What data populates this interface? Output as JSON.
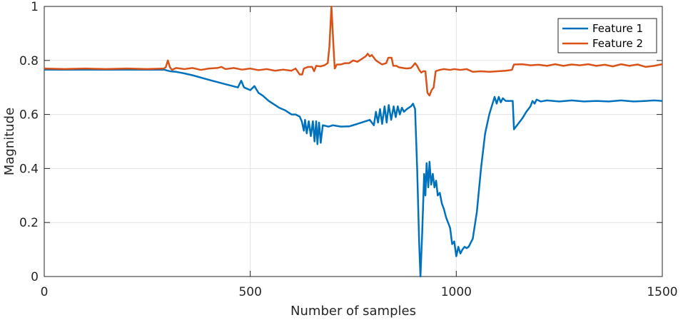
{
  "chart_data": {
    "type": "line",
    "title": "",
    "xlabel": "Number of samples",
    "ylabel": "Magnitude",
    "xlim": [
      0,
      1500
    ],
    "ylim": [
      0,
      1
    ],
    "xticks": [
      0,
      500,
      1000,
      1500
    ],
    "yticks": [
      0,
      0.2,
      0.4,
      0.6,
      0.8,
      1
    ],
    "xtick_labels": [
      "0",
      "500",
      "1000",
      "1500"
    ],
    "ytick_labels": [
      "0",
      "0.2",
      "0.4",
      "0.6",
      "0.8",
      "1"
    ],
    "grid": true,
    "legend_position": "top-right",
    "series": [
      {
        "name": "Feature 1",
        "color": "#0072BD",
        "points": [
          [
            0,
            0.766
          ],
          [
            100,
            0.766
          ],
          [
            200,
            0.766
          ],
          [
            290,
            0.766
          ],
          [
            305,
            0.76
          ],
          [
            320,
            0.758
          ],
          [
            340,
            0.752
          ],
          [
            360,
            0.745
          ],
          [
            400,
            0.728
          ],
          [
            440,
            0.712
          ],
          [
            470,
            0.7
          ],
          [
            478,
            0.725
          ],
          [
            485,
            0.7
          ],
          [
            500,
            0.69
          ],
          [
            510,
            0.705
          ],
          [
            520,
            0.68
          ],
          [
            530,
            0.67
          ],
          [
            545,
            0.65
          ],
          [
            555,
            0.64
          ],
          [
            570,
            0.625
          ],
          [
            585,
            0.615
          ],
          [
            600,
            0.6
          ],
          [
            610,
            0.6
          ],
          [
            620,
            0.592
          ],
          [
            625,
            0.575
          ],
          [
            630,
            0.54
          ],
          [
            633,
            0.58
          ],
          [
            637,
            0.53
          ],
          [
            642,
            0.575
          ],
          [
            647,
            0.52
          ],
          [
            652,
            0.575
          ],
          [
            656,
            0.5
          ],
          [
            660,
            0.575
          ],
          [
            663,
            0.49
          ],
          [
            667,
            0.57
          ],
          [
            671,
            0.495
          ],
          [
            676,
            0.56
          ],
          [
            690,
            0.555
          ],
          [
            700,
            0.56
          ],
          [
            720,
            0.555
          ],
          [
            740,
            0.556
          ],
          [
            760,
            0.565
          ],
          [
            770,
            0.57
          ],
          [
            780,
            0.575
          ],
          [
            790,
            0.58
          ],
          [
            800,
            0.56
          ],
          [
            805,
            0.61
          ],
          [
            810,
            0.57
          ],
          [
            815,
            0.62
          ],
          [
            820,
            0.565
          ],
          [
            826,
            0.63
          ],
          [
            831,
            0.57
          ],
          [
            836,
            0.635
          ],
          [
            842,
            0.58
          ],
          [
            848,
            0.63
          ],
          [
            853,
            0.59
          ],
          [
            858,
            0.63
          ],
          [
            863,
            0.6
          ],
          [
            868,
            0.625
          ],
          [
            873,
            0.61
          ],
          [
            880,
            0.62
          ],
          [
            890,
            0.63
          ],
          [
            895,
            0.64
          ],
          [
            900,
            0.62
          ],
          [
            905,
            0.4
          ],
          [
            910,
            0.12
          ],
          [
            913,
            0.0
          ],
          [
            917,
            0.15
          ],
          [
            922,
            0.38
          ],
          [
            925,
            0.3
          ],
          [
            928,
            0.42
          ],
          [
            932,
            0.33
          ],
          [
            935,
            0.425
          ],
          [
            939,
            0.34
          ],
          [
            943,
            0.38
          ],
          [
            947,
            0.33
          ],
          [
            951,
            0.355
          ],
          [
            955,
            0.3
          ],
          [
            960,
            0.31
          ],
          [
            965,
            0.27
          ],
          [
            970,
            0.25
          ],
          [
            975,
            0.22
          ],
          [
            980,
            0.2
          ],
          [
            985,
            0.18
          ],
          [
            990,
            0.12
          ],
          [
            995,
            0.13
          ],
          [
            1000,
            0.075
          ],
          [
            1005,
            0.11
          ],
          [
            1010,
            0.085
          ],
          [
            1015,
            0.1
          ],
          [
            1020,
            0.11
          ],
          [
            1025,
            0.105
          ],
          [
            1030,
            0.11
          ],
          [
            1040,
            0.14
          ],
          [
            1050,
            0.24
          ],
          [
            1060,
            0.4
          ],
          [
            1070,
            0.53
          ],
          [
            1080,
            0.6
          ],
          [
            1088,
            0.64
          ],
          [
            1093,
            0.665
          ],
          [
            1098,
            0.64
          ],
          [
            1103,
            0.665
          ],
          [
            1108,
            0.645
          ],
          [
            1113,
            0.66
          ],
          [
            1120,
            0.65
          ],
          [
            1130,
            0.65
          ],
          [
            1137,
            0.65
          ],
          [
            1140,
            0.545
          ],
          [
            1150,
            0.565
          ],
          [
            1160,
            0.585
          ],
          [
            1170,
            0.61
          ],
          [
            1180,
            0.63
          ],
          [
            1185,
            0.65
          ],
          [
            1190,
            0.64
          ],
          [
            1195,
            0.655
          ],
          [
            1205,
            0.648
          ],
          [
            1220,
            0.652
          ],
          [
            1250,
            0.648
          ],
          [
            1280,
            0.652
          ],
          [
            1310,
            0.648
          ],
          [
            1340,
            0.65
          ],
          [
            1370,
            0.648
          ],
          [
            1400,
            0.652
          ],
          [
            1430,
            0.648
          ],
          [
            1460,
            0.65
          ],
          [
            1480,
            0.652
          ],
          [
            1500,
            0.65
          ]
        ]
      },
      {
        "name": "Feature 2",
        "color": "#D95319",
        "points": [
          [
            0,
            0.77
          ],
          [
            50,
            0.768
          ],
          [
            100,
            0.77
          ],
          [
            150,
            0.768
          ],
          [
            200,
            0.77
          ],
          [
            250,
            0.768
          ],
          [
            290,
            0.77
          ],
          [
            295,
            0.775
          ],
          [
            300,
            0.8
          ],
          [
            305,
            0.775
          ],
          [
            310,
            0.765
          ],
          [
            320,
            0.772
          ],
          [
            340,
            0.768
          ],
          [
            360,
            0.772
          ],
          [
            380,
            0.765
          ],
          [
            400,
            0.77
          ],
          [
            420,
            0.772
          ],
          [
            430,
            0.776
          ],
          [
            440,
            0.768
          ],
          [
            460,
            0.772
          ],
          [
            480,
            0.766
          ],
          [
            500,
            0.77
          ],
          [
            520,
            0.764
          ],
          [
            540,
            0.768
          ],
          [
            560,
            0.762
          ],
          [
            580,
            0.766
          ],
          [
            600,
            0.762
          ],
          [
            610,
            0.77
          ],
          [
            620,
            0.748
          ],
          [
            626,
            0.748
          ],
          [
            630,
            0.77
          ],
          [
            640,
            0.776
          ],
          [
            650,
            0.776
          ],
          [
            655,
            0.76
          ],
          [
            660,
            0.78
          ],
          [
            670,
            0.778
          ],
          [
            680,
            0.782
          ],
          [
            688,
            0.79
          ],
          [
            692,
            0.85
          ],
          [
            697,
            1.0
          ],
          [
            702,
            0.85
          ],
          [
            705,
            0.77
          ],
          [
            710,
            0.785
          ],
          [
            720,
            0.785
          ],
          [
            730,
            0.79
          ],
          [
            740,
            0.79
          ],
          [
            750,
            0.8
          ],
          [
            760,
            0.795
          ],
          [
            770,
            0.805
          ],
          [
            775,
            0.81
          ],
          [
            780,
            0.815
          ],
          [
            785,
            0.825
          ],
          [
            790,
            0.815
          ],
          [
            795,
            0.82
          ],
          [
            800,
            0.81
          ],
          [
            805,
            0.8
          ],
          [
            810,
            0.795
          ],
          [
            820,
            0.785
          ],
          [
            830,
            0.79
          ],
          [
            835,
            0.81
          ],
          [
            843,
            0.81
          ],
          [
            847,
            0.78
          ],
          [
            855,
            0.78
          ],
          [
            860,
            0.775
          ],
          [
            870,
            0.772
          ],
          [
            880,
            0.77
          ],
          [
            890,
            0.772
          ],
          [
            895,
            0.78
          ],
          [
            900,
            0.79
          ],
          [
            905,
            0.78
          ],
          [
            910,
            0.765
          ],
          [
            915,
            0.755
          ],
          [
            920,
            0.76
          ],
          [
            925,
            0.76
          ],
          [
            930,
            0.68
          ],
          [
            935,
            0.67
          ],
          [
            940,
            0.69
          ],
          [
            945,
            0.7
          ],
          [
            950,
            0.76
          ],
          [
            960,
            0.765
          ],
          [
            970,
            0.768
          ],
          [
            985,
            0.765
          ],
          [
            995,
            0.768
          ],
          [
            1010,
            0.765
          ],
          [
            1025,
            0.768
          ],
          [
            1040,
            0.758
          ],
          [
            1060,
            0.76
          ],
          [
            1080,
            0.758
          ],
          [
            1100,
            0.76
          ],
          [
            1120,
            0.762
          ],
          [
            1135,
            0.765
          ],
          [
            1140,
            0.785
          ],
          [
            1160,
            0.786
          ],
          [
            1180,
            0.782
          ],
          [
            1200,
            0.784
          ],
          [
            1220,
            0.78
          ],
          [
            1240,
            0.786
          ],
          [
            1260,
            0.78
          ],
          [
            1280,
            0.785
          ],
          [
            1300,
            0.782
          ],
          [
            1320,
            0.786
          ],
          [
            1340,
            0.78
          ],
          [
            1360,
            0.784
          ],
          [
            1380,
            0.778
          ],
          [
            1400,
            0.786
          ],
          [
            1420,
            0.78
          ],
          [
            1440,
            0.785
          ],
          [
            1460,
            0.776
          ],
          [
            1480,
            0.78
          ],
          [
            1500,
            0.786
          ]
        ]
      }
    ]
  }
}
